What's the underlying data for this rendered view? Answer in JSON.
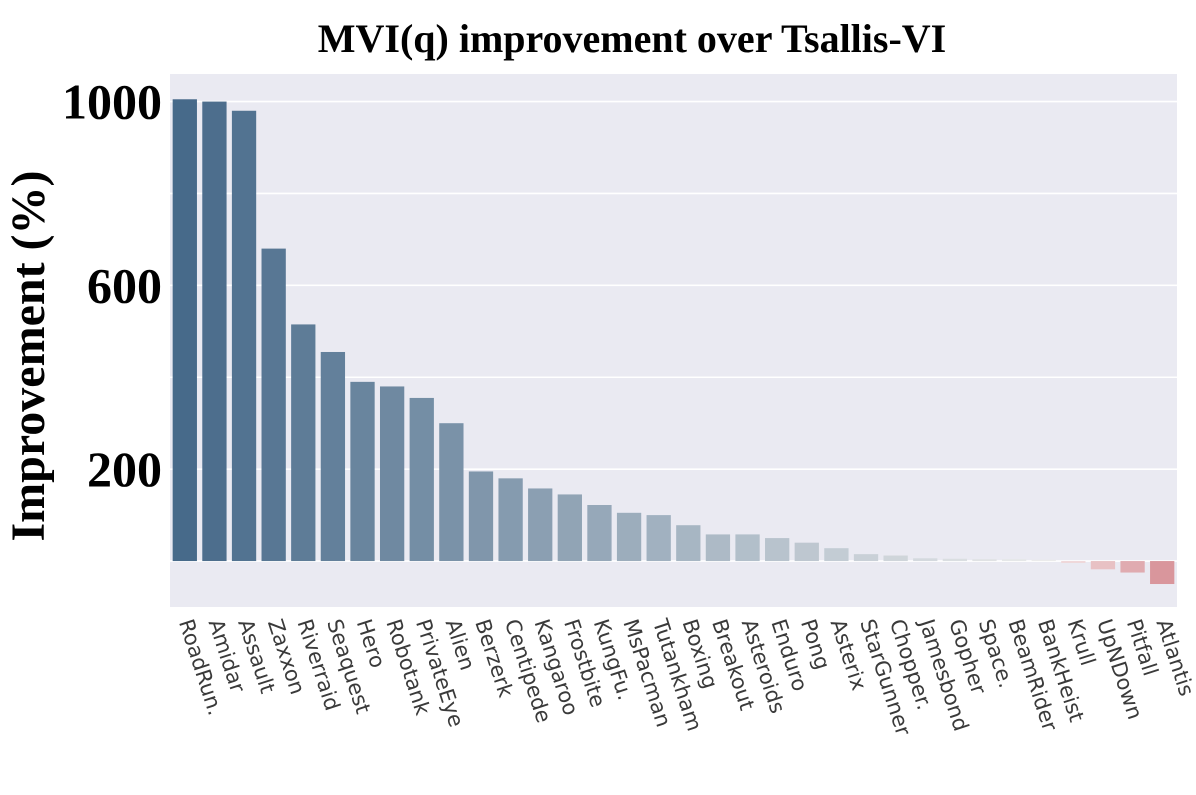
{
  "chart_data": {
    "type": "bar",
    "title": "MVI(q) improvement over Tsallis-VI",
    "xlabel": "",
    "ylabel": "Improvement (%)",
    "ylim": [
      -100,
      1060
    ],
    "yticks": [
      200,
      600,
      1000
    ],
    "grid": true,
    "categories": [
      "RoadRun.",
      "Amidar",
      "Assault",
      "Zaxxon",
      "Riverraid",
      "Seaquest",
      "Hero",
      "Robotank",
      "PrivateEye",
      "Alien",
      "Berzerk",
      "Centipede",
      "Kangaroo",
      "Frostbite",
      "KungFu.",
      "MsPacman",
      "Tutankham",
      "Boxing",
      "Breakout",
      "Asteroids",
      "Enduro",
      "Pong",
      "Asterix",
      "StarGunner",
      "Chopper.",
      "Jamesbond",
      "Gopher",
      "Space.",
      "BeamRider",
      "BankHeist",
      "Krull",
      "UpNDown",
      "Pitfall",
      "Atlantis"
    ],
    "values": [
      1005,
      1000,
      980,
      680,
      515,
      455,
      390,
      380,
      355,
      300,
      195,
      180,
      158,
      145,
      122,
      105,
      100,
      78,
      58,
      58,
      50,
      40,
      28,
      15,
      12,
      6,
      5,
      4,
      4,
      3,
      -4,
      -18,
      -25,
      -50
    ],
    "colors": {
      "positive_start": "#476a8a",
      "positive_end": "#ebebeb",
      "negative_start": "#efd6d8",
      "negative_end": "#d9969c",
      "plot_background": "#eaeaf2",
      "gridline": "#ffffff"
    }
  }
}
